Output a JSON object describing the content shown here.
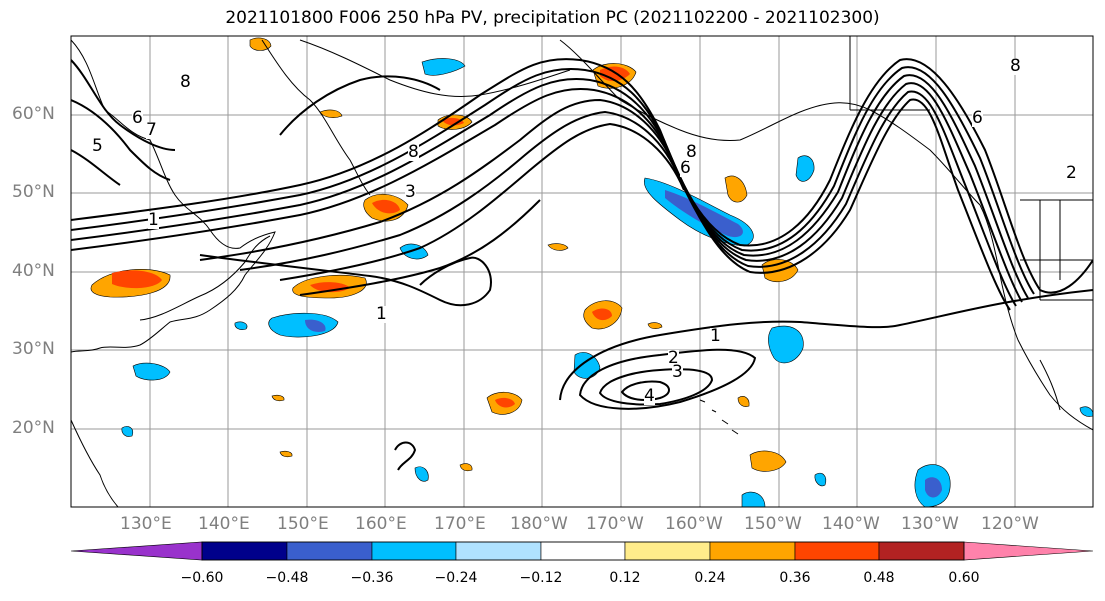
{
  "title": "2021101800 F006 250 hPa PV, precipitation PC (2021102200 - 2021102300)",
  "lat_labels": [
    "60°N",
    "50°N",
    "40°N",
    "30°N",
    "20°N"
  ],
  "lon_labels": [
    "130°E",
    "140°E",
    "150°E",
    "160°E",
    "170°E",
    "180°W",
    "170°W",
    "160°W",
    "150°W",
    "140°W",
    "130°W",
    "120°W"
  ],
  "contour_labels": [
    "1",
    "1",
    "1",
    "2",
    "3",
    "4",
    "2",
    "3",
    "5",
    "6",
    "7",
    "8",
    "8",
    "6",
    "8",
    "6",
    "8"
  ],
  "colorbar": {
    "tick_labels": [
      "−0.60",
      "−0.48",
      "−0.36",
      "−0.24",
      "−0.12",
      "0.12",
      "0.24",
      "0.36",
      "0.48",
      "0.60"
    ],
    "colors": [
      "#9932cc",
      "#00008b",
      "#3a5fcd",
      "#00bfff",
      "#b0e2ff",
      "#ffffff",
      "#ffec8b",
      "#ffa500",
      "#ff4500",
      "#b22222",
      "#ff82ab"
    ]
  }
}
